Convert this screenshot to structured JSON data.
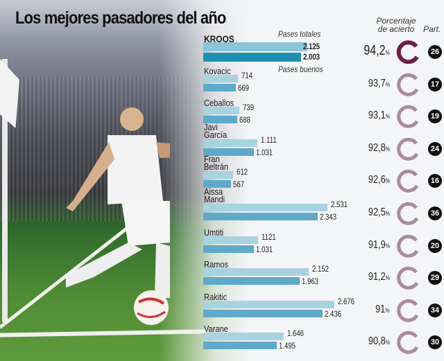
{
  "title": "Los mejores pasadores del año",
  "legend": {
    "total": "Pases totales",
    "good": "Pases buenos"
  },
  "headers": {
    "accuracy": "Porcentaje de acierto",
    "matches": "Part."
  },
  "colors": {
    "total_bar": "#a9d2e3",
    "good_bar": "#5fa9c9",
    "highlight_total": "#8cc4da",
    "highlight_good": "#1f8fb0",
    "ring_highlight": "#6b1f47",
    "ring": "#a98c9b"
  },
  "chart_data": {
    "type": "bar",
    "orientation": "horizontal",
    "categories": [
      "KROOS",
      "Kovacic",
      "Ceballos",
      "Javi García",
      "Fran Beltrán",
      "Aissa Mandi",
      "Umtiti",
      "Ramos",
      "Rakitic",
      "Varane"
    ],
    "series": [
      {
        "name": "Pases totales",
        "values": [
          2125,
          714,
          739,
          1111,
          612,
          2531,
          1121,
          2152,
          2676,
          1646
        ],
        "labels": [
          "2.125",
          "714",
          "739",
          "1.111",
          "612",
          "2.531",
          "1121",
          "2.152",
          "2.676",
          "1.646"
        ]
      },
      {
        "name": "Pases buenos",
        "values": [
          2003,
          669,
          688,
          1031,
          567,
          2343,
          1031,
          1963,
          2436,
          1495
        ],
        "labels": [
          "2.003",
          "669",
          "688",
          "1.031",
          "567",
          "2.343",
          "1.031",
          "1.963",
          "2.436",
          "1.495"
        ]
      }
    ],
    "accuracy": [
      "94,2",
      "93,7",
      "93,1",
      "92,8",
      "92,6",
      "92,5",
      "91,9",
      "91,2",
      "91",
      "90,8"
    ],
    "accuracy_unit": "%",
    "matches": [
      "26",
      "17",
      "19",
      "24",
      "16",
      "36",
      "20",
      "29",
      "34",
      "30"
    ]
  }
}
